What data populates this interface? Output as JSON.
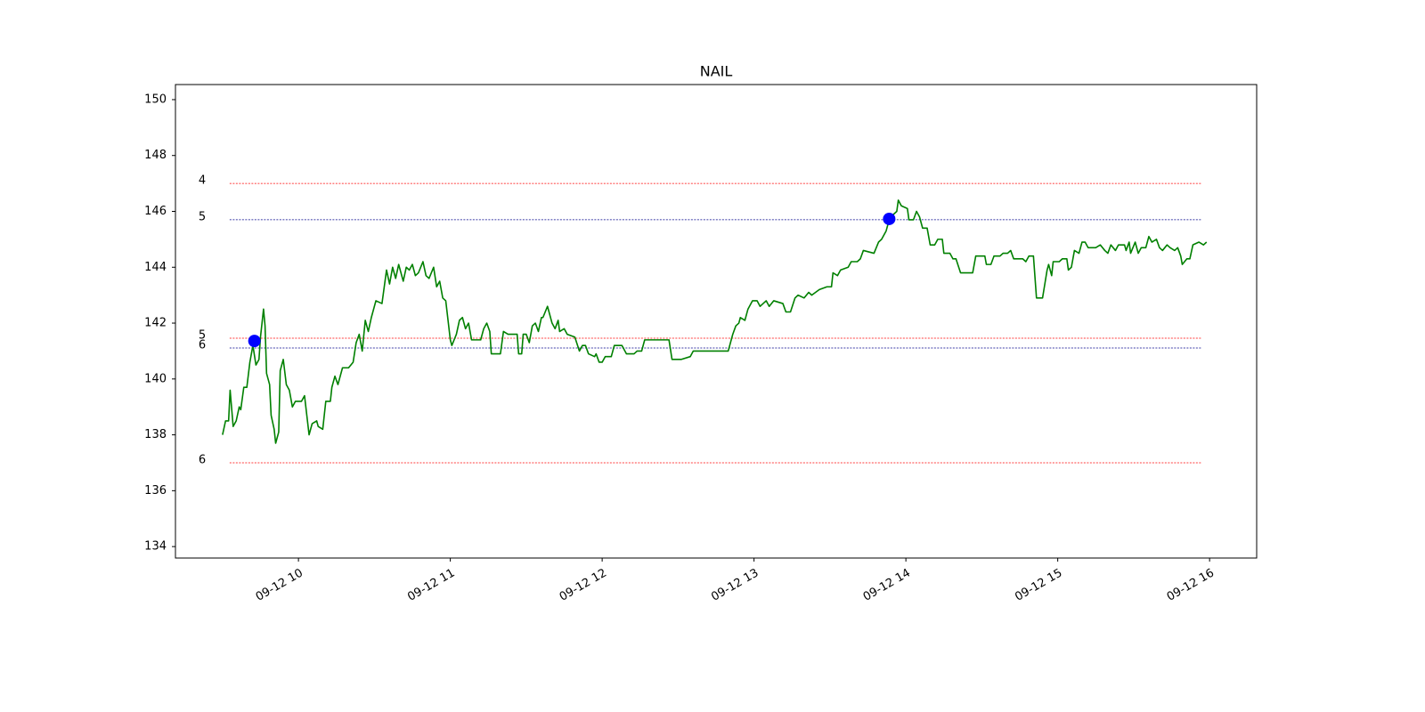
{
  "chart_data": {
    "type": "line",
    "title": "NAIL",
    "color": "#008000",
    "x": [
      9.5,
      9.52,
      9.54,
      9.55,
      9.57,
      9.59,
      9.61,
      9.62,
      9.64,
      9.66,
      9.68,
      9.7,
      9.72,
      9.74,
      9.75,
      9.77,
      9.78,
      9.79,
      9.81,
      9.82,
      9.84,
      9.85,
      9.87,
      9.88,
      9.9,
      9.92,
      9.94,
      9.96,
      9.98,
      10.02,
      10.04,
      10.07,
      10.09,
      10.12,
      10.13,
      10.16,
      10.18,
      10.21,
      10.22,
      10.24,
      10.26,
      10.29,
      10.33,
      10.36,
      10.38,
      10.4,
      10.42,
      10.44,
      10.46,
      10.48,
      10.51,
      10.55,
      10.58,
      10.6,
      10.62,
      10.64,
      10.66,
      10.69,
      10.71,
      10.73,
      10.75,
      10.77,
      10.79,
      10.82,
      10.84,
      10.86,
      10.89,
      10.91,
      10.93,
      10.95,
      10.97,
      11.0,
      11.01,
      11.04,
      11.06,
      11.08,
      11.1,
      11.12,
      11.14,
      11.2,
      11.22,
      11.24,
      11.26,
      11.27,
      11.33,
      11.35,
      11.38,
      11.44,
      11.45,
      11.47,
      11.48,
      11.5,
      11.52,
      11.54,
      11.56,
      11.58,
      11.6,
      11.61,
      11.64,
      11.65,
      11.67,
      11.69,
      11.71,
      11.72,
      11.75,
      11.77,
      11.82,
      11.85,
      11.87,
      11.89,
      11.91,
      11.95,
      11.96,
      11.98,
      12.0,
      12.02,
      12.06,
      12.08,
      12.13,
      12.16,
      12.21,
      12.23,
      12.26,
      12.28,
      12.44,
      12.46,
      12.52,
      12.58,
      12.6,
      12.83,
      12.86,
      12.88,
      12.9,
      12.91,
      12.94,
      12.96,
      12.99,
      13.02,
      13.04,
      13.08,
      13.1,
      13.13,
      13.19,
      13.21,
      13.24,
      13.27,
      13.29,
      13.33,
      13.36,
      13.38,
      13.43,
      13.48,
      13.51,
      13.52,
      13.55,
      13.57,
      13.62,
      13.64,
      13.68,
      13.7,
      13.72,
      13.79,
      13.82,
      13.84,
      13.87,
      13.89,
      13.92,
      13.94,
      13.95,
      13.97,
      14.01,
      14.02,
      14.05,
      14.07,
      14.09,
      14.11,
      14.14,
      14.16,
      14.19,
      14.21,
      14.24,
      14.25,
      14.29,
      14.31,
      14.33,
      14.36,
      14.44,
      14.46,
      14.52,
      14.53,
      14.56,
      14.58,
      14.62,
      14.64,
      14.67,
      14.69,
      14.71,
      14.77,
      14.79,
      14.81,
      14.84,
      14.86,
      14.9,
      14.93,
      14.94,
      14.96,
      14.97,
      15.01,
      15.03,
      15.06,
      15.07,
      15.09,
      15.11,
      15.14,
      15.16,
      15.18,
      15.2,
      15.25,
      15.28,
      15.31,
      15.33,
      15.35,
      15.38,
      15.4,
      15.44,
      15.45,
      15.47,
      15.48,
      15.51,
      15.53,
      15.55,
      15.58,
      15.6,
      15.62,
      15.65,
      15.67,
      15.69,
      15.72,
      15.74,
      15.77,
      15.79,
      15.81,
      15.82,
      15.85,
      15.87,
      15.89,
      15.93,
      15.96,
      15.98
    ],
    "values": [
      138.0,
      138.5,
      138.5,
      139.6,
      138.3,
      138.5,
      139.0,
      138.9,
      139.7,
      139.7,
      140.6,
      141.2,
      140.5,
      140.7,
      141.5,
      142.5,
      141.9,
      140.2,
      139.8,
      138.7,
      138.2,
      137.7,
      138.1,
      140.3,
      140.7,
      139.8,
      139.6,
      139.0,
      139.2,
      139.2,
      139.4,
      138.0,
      138.4,
      138.5,
      138.3,
      138.2,
      139.2,
      139.2,
      139.7,
      140.1,
      139.8,
      140.4,
      140.4,
      140.6,
      141.3,
      141.6,
      141.0,
      142.1,
      141.7,
      142.2,
      142.8,
      142.7,
      143.9,
      143.4,
      144.0,
      143.6,
      144.1,
      143.5,
      144.0,
      143.9,
      144.1,
      143.7,
      143.8,
      144.2,
      143.7,
      143.6,
      144.0,
      143.3,
      143.5,
      142.9,
      142.8,
      141.4,
      141.2,
      141.6,
      142.1,
      142.2,
      141.8,
      142.0,
      141.4,
      141.4,
      141.8,
      142.0,
      141.7,
      140.9,
      140.9,
      141.7,
      141.6,
      141.6,
      140.9,
      140.9,
      141.6,
      141.6,
      141.3,
      141.9,
      142.0,
      141.7,
      142.2,
      142.2,
      142.6,
      142.4,
      142.0,
      141.8,
      142.1,
      141.7,
      141.8,
      141.6,
      141.5,
      141.0,
      141.2,
      141.2,
      140.9,
      140.8,
      140.9,
      140.6,
      140.6,
      140.8,
      140.8,
      141.2,
      141.2,
      140.9,
      140.9,
      141.0,
      141.0,
      141.4,
      141.4,
      140.7,
      140.7,
      140.8,
      141.0,
      141.0,
      141.6,
      141.9,
      142.0,
      142.2,
      142.1,
      142.5,
      142.8,
      142.8,
      142.6,
      142.8,
      142.6,
      142.8,
      142.7,
      142.4,
      142.4,
      142.9,
      143.0,
      142.9,
      143.1,
      143.0,
      143.2,
      143.3,
      143.3,
      143.8,
      143.7,
      143.9,
      144.0,
      144.2,
      144.2,
      144.3,
      144.6,
      144.5,
      144.9,
      145.0,
      145.3,
      145.7,
      145.9,
      146.0,
      146.4,
      146.2,
      146.1,
      145.7,
      145.7,
      146.0,
      145.8,
      145.4,
      145.4,
      144.8,
      144.8,
      145.0,
      145.0,
      144.5,
      144.5,
      144.3,
      144.3,
      143.8,
      143.8,
      144.4,
      144.4,
      144.1,
      144.1,
      144.4,
      144.4,
      144.5,
      144.5,
      144.6,
      144.3,
      144.3,
      144.2,
      144.4,
      144.4,
      142.9,
      142.9,
      143.9,
      144.1,
      143.7,
      144.2,
      144.2,
      144.3,
      144.3,
      143.9,
      144.0,
      144.6,
      144.5,
      144.9,
      144.9,
      144.7,
      144.7,
      144.8,
      144.6,
      144.5,
      144.8,
      144.6,
      144.8,
      144.8,
      144.6,
      144.9,
      144.5,
      144.9,
      144.5,
      144.7,
      144.7,
      145.1,
      144.9,
      145.0,
      144.7,
      144.6,
      144.8,
      144.7,
      144.6,
      144.7,
      144.4,
      144.1,
      144.3,
      144.3,
      144.8,
      144.9,
      144.8,
      144.9
    ],
    "markers": {
      "color": "#0000ff",
      "x": [
        9.71,
        13.89
      ],
      "values": [
        141.36,
        145.73
      ]
    },
    "levels": [
      {
        "label": "4",
        "value": 147.0,
        "color": "#ff0000"
      },
      {
        "label": "5",
        "value": 145.7,
        "color": "#00008b"
      },
      {
        "label": "5",
        "value": 141.46,
        "color": "#ff0000"
      },
      {
        "label": "6",
        "value": 141.11,
        "color": "#00008b"
      },
      {
        "label": "6",
        "value": 137.0,
        "color": "#ff0000"
      }
    ],
    "xlim": [
      9.19,
      16.31
    ],
    "ylim": [
      133.59,
      150.54
    ],
    "xticks": [
      {
        "value": 10,
        "label": "09-12 10"
      },
      {
        "value": 11,
        "label": "09-12 11"
      },
      {
        "value": 12,
        "label": "09-12 12"
      },
      {
        "value": 13,
        "label": "09-12 13"
      },
      {
        "value": 14,
        "label": "09-12 14"
      },
      {
        "value": 15,
        "label": "09-12 15"
      },
      {
        "value": 16,
        "label": "09-12 16"
      }
    ],
    "yticks": [
      134,
      136,
      138,
      140,
      142,
      144,
      146,
      148,
      150
    ],
    "grid": false
  }
}
